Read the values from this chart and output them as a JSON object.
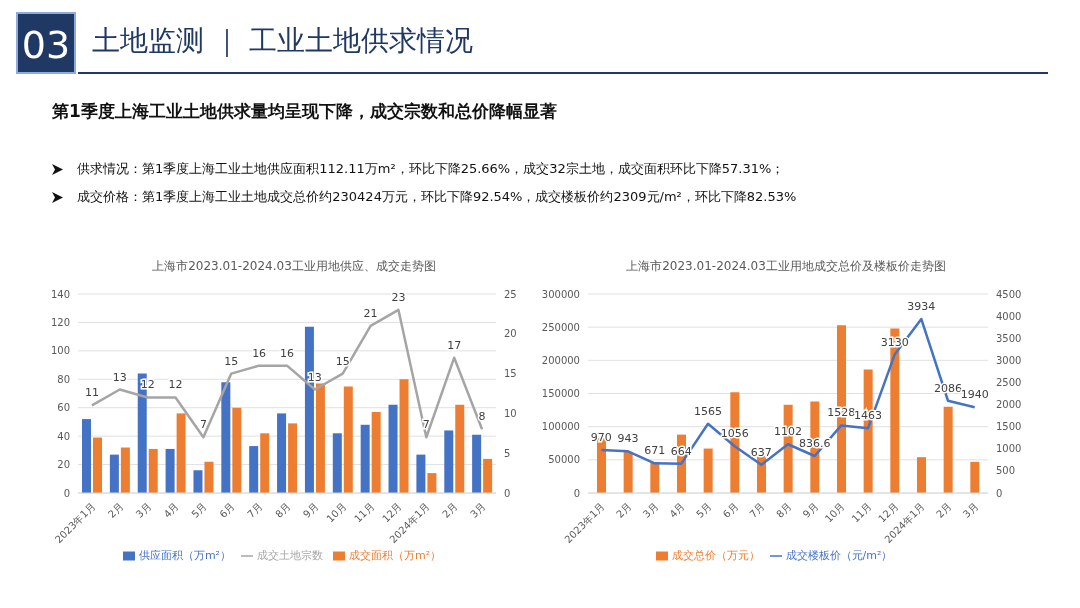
{
  "chart_data": [
    {
      "type": "other",
      "title": "土地监测 ｜ 工业土地供求情况",
      "subtitle": "第1季度上海工业土地供求量均呈现下降，成交宗数和总价降幅显著",
      "annotations": [
        "03",
        "供求情况：第1季度上海工业土地供应面积112.11万m²，环比下降25.66%，成交32宗土地，成交面积环比下降57.31%；",
        "成交价格：第1季度上海工业土地成交总价约230424万元，环比下降92.54%，成交楼板价约2309元/m²，环比下降82.53%"
      ]
    },
    {
      "type": "bar",
      "title": "上海市2023.01-2024.03工业用地供应、成交走势图",
      "categories": [
        "2023年1月",
        "2月",
        "3月",
        "4月",
        "5月",
        "6月",
        "7月",
        "8月",
        "9月",
        "10月",
        "11月",
        "12月",
        "2024年1月",
        "2月",
        "3月"
      ],
      "series": [
        {
          "name": "供应面积（万m²）",
          "type": "bar",
          "color": "#4472c4",
          "values": [
            52,
            27,
            84,
            31,
            16,
            78,
            33,
            56,
            117,
            42,
            48,
            62,
            27,
            44,
            41
          ]
        },
        {
          "name": "成交面积（万m²）",
          "type": "bar",
          "color": "#ed7d31",
          "values": [
            39,
            32,
            31,
            56,
            22,
            60,
            42,
            49,
            77,
            75,
            57,
            80,
            14,
            62,
            24
          ]
        },
        {
          "name": "成交土地宗数",
          "type": "line",
          "axis": "y2",
          "color": "#a5a5a5",
          "values": [
            11,
            13,
            12,
            12,
            7,
            15,
            16,
            16,
            13,
            15,
            21,
            23,
            7,
            17,
            8
          ],
          "value_labels": [
            "11",
            "13",
            "12",
            "12",
            "7",
            "15",
            "16",
            "16",
            "13",
            "15",
            "21",
            "23",
            "7",
            "17",
            "8"
          ]
        }
      ],
      "ylim": [
        0,
        140
      ],
      "yticks": [
        0,
        20,
        40,
        60,
        80,
        100,
        120,
        140
      ],
      "y2lim": [
        0,
        25
      ],
      "y2ticks": [
        0,
        5,
        10,
        15,
        20,
        25
      ],
      "grid": "y",
      "legend": "bottom",
      "marker": "none",
      "line_style": "solid"
    },
    {
      "type": "bar",
      "title": "上海市2023.01-2024.03工业用地成交总价及楼板价走势图",
      "categories": [
        "2023年1月",
        "2月",
        "3月",
        "4月",
        "5月",
        "6月",
        "7月",
        "8月",
        "9月",
        "10月",
        "11月",
        "12月",
        "2024年1月",
        "2月",
        "3月"
      ],
      "series": [
        {
          "name": "成交总价（万元）",
          "type": "bar",
          "color": "#ed7d31",
          "values": [
            83000,
            62000,
            46000,
            88000,
            67000,
            152000,
            56000,
            133000,
            138000,
            253000,
            186000,
            248000,
            54000,
            130000,
            47000
          ]
        },
        {
          "name": "成交楼板价（元/m²）",
          "type": "line",
          "axis": "y2",
          "color": "#4472c4",
          "values": [
            970,
            943,
            671,
            664,
            1565,
            1056,
            637,
            1102,
            836.6,
            1528,
            1463,
            3130,
            3934,
            2086,
            1940
          ],
          "value_labels": [
            "970",
            "943",
            "671",
            "664",
            "1565",
            "1056",
            "637",
            "1102",
            "836.6",
            "1528",
            "1463",
            "3130",
            "3934",
            "2086",
            "1940"
          ]
        }
      ],
      "ylim": [
        0,
        300000
      ],
      "yticks": [
        0,
        50000,
        100000,
        150000,
        200000,
        250000,
        300000
      ],
      "y2lim": [
        0,
        4500
      ],
      "y2ticks": [
        0,
        500,
        1000,
        1500,
        2000,
        2500,
        3000,
        3500,
        4000,
        4500
      ],
      "grid": "y",
      "legend": "bottom",
      "marker": "none",
      "line_style": "solid"
    }
  ]
}
